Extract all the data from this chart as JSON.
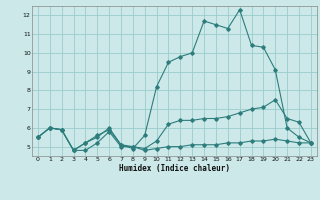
{
  "xlabel": "Humidex (Indice chaleur)",
  "bg_color": "#cce8e8",
  "grid_color": "#99cccc",
  "line_color": "#2d7d7d",
  "xlim": [
    -0.5,
    23.5
  ],
  "ylim": [
    4.5,
    12.5
  ],
  "xticks": [
    0,
    1,
    2,
    3,
    4,
    5,
    6,
    7,
    8,
    9,
    10,
    11,
    12,
    13,
    14,
    15,
    16,
    17,
    18,
    19,
    20,
    21,
    22,
    23
  ],
  "yticks": [
    5,
    6,
    7,
    8,
    9,
    10,
    11,
    12
  ],
  "line1_x": [
    0,
    1,
    2,
    3,
    4,
    5,
    6,
    7,
    8,
    9,
    10,
    11,
    12,
    13,
    14,
    15,
    16,
    17,
    18,
    19,
    20,
    21,
    22,
    23
  ],
  "line1_y": [
    5.5,
    6.0,
    5.9,
    4.8,
    4.8,
    5.2,
    5.8,
    5.0,
    5.0,
    4.8,
    4.9,
    5.0,
    5.0,
    5.1,
    5.1,
    5.1,
    5.2,
    5.2,
    5.3,
    5.3,
    5.4,
    5.3,
    5.2,
    5.2
  ],
  "line2_x": [
    0,
    1,
    2,
    3,
    4,
    5,
    6,
    7,
    8,
    9,
    10,
    11,
    12,
    13,
    14,
    15,
    16,
    17,
    18,
    19,
    20,
    21,
    22,
    23
  ],
  "line2_y": [
    5.5,
    6.0,
    5.9,
    4.8,
    5.2,
    5.5,
    6.0,
    5.1,
    5.0,
    4.9,
    5.3,
    6.2,
    6.4,
    6.4,
    6.5,
    6.5,
    6.6,
    6.8,
    7.0,
    7.1,
    7.5,
    6.5,
    6.3,
    5.2
  ],
  "line3_x": [
    0,
    1,
    2,
    3,
    4,
    5,
    6,
    7,
    8,
    9,
    10,
    11,
    12,
    13,
    14,
    15,
    16,
    17,
    18,
    19,
    20,
    21,
    22,
    23
  ],
  "line3_y": [
    5.5,
    6.0,
    5.9,
    4.8,
    5.2,
    5.6,
    5.9,
    5.1,
    4.9,
    5.6,
    8.2,
    9.5,
    9.8,
    10.0,
    11.7,
    11.5,
    11.3,
    12.3,
    10.4,
    10.3,
    9.1,
    6.0,
    5.5,
    5.2
  ]
}
